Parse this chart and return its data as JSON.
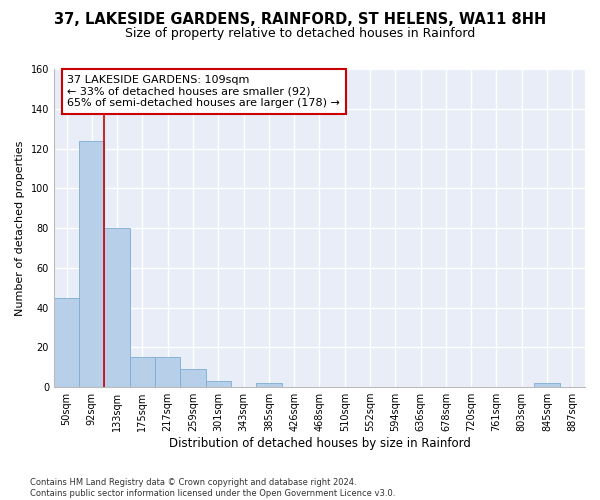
{
  "title1": "37, LAKESIDE GARDENS, RAINFORD, ST HELENS, WA11 8HH",
  "title2": "Size of property relative to detached houses in Rainford",
  "xlabel": "Distribution of detached houses by size in Rainford",
  "ylabel": "Number of detached properties",
  "bar_labels": [
    "50sqm",
    "92sqm",
    "133sqm",
    "175sqm",
    "217sqm",
    "259sqm",
    "301sqm",
    "343sqm",
    "385sqm",
    "426sqm",
    "468sqm",
    "510sqm",
    "552sqm",
    "594sqm",
    "636sqm",
    "678sqm",
    "720sqm",
    "761sqm",
    "803sqm",
    "845sqm",
    "887sqm"
  ],
  "bar_values": [
    45,
    124,
    80,
    15,
    15,
    9,
    3,
    0,
    2,
    0,
    0,
    0,
    0,
    0,
    0,
    0,
    0,
    0,
    0,
    2,
    0
  ],
  "bar_color": "#b8cfea",
  "bar_edge_color": "#7aadd4",
  "bg_color": "#e8edf8",
  "grid_color": "#ffffff",
  "vline_x": 1.5,
  "vline_color": "#cc0000",
  "annotation_text": "37 LAKESIDE GARDENS: 109sqm\n← 33% of detached houses are smaller (92)\n65% of semi-detached houses are larger (178) →",
  "annotation_box_color": "#ffffff",
  "annotation_box_edge": "#cc0000",
  "ylim": [
    0,
    160
  ],
  "yticks": [
    0,
    20,
    40,
    60,
    80,
    100,
    120,
    140,
    160
  ],
  "footnote": "Contains HM Land Registry data © Crown copyright and database right 2024.\nContains public sector information licensed under the Open Government Licence v3.0.",
  "title1_fontsize": 10.5,
  "title2_fontsize": 9,
  "xlabel_fontsize": 8.5,
  "ylabel_fontsize": 8,
  "tick_fontsize": 7,
  "annot_fontsize": 8,
  "footnote_fontsize": 6
}
